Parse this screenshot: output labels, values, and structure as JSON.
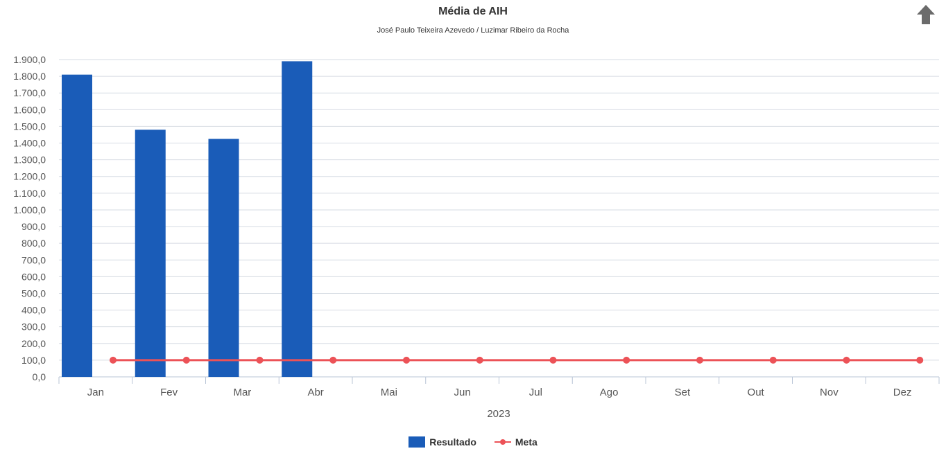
{
  "chart_data": {
    "type": "bar",
    "title": "Média de AIH",
    "subtitle": "José Paulo Teixeira Azevedo / Luzimar Ribeiro da Rocha",
    "xlabel": "2023",
    "ylabel": "",
    "categories": [
      "Jan",
      "Fev",
      "Mar",
      "Abr",
      "Mai",
      "Jun",
      "Jul",
      "Ago",
      "Set",
      "Out",
      "Nov",
      "Dez"
    ],
    "ylim": [
      0,
      1900
    ],
    "ytick_step": 100,
    "yticks": [
      "0,0",
      "100,0",
      "200,0",
      "300,0",
      "400,0",
      "500,0",
      "600,0",
      "700,0",
      "800,0",
      "900,0",
      "1.000,0",
      "1.100,0",
      "1.200,0",
      "1.300,0",
      "1.400,0",
      "1.500,0",
      "1.600,0",
      "1.700,0",
      "1.800,0",
      "1.900,0"
    ],
    "grid": true,
    "legend_position": "bottom-center",
    "series": [
      {
        "name": "Resultado",
        "type": "bar",
        "color": "#1a5cb8",
        "values": [
          1810,
          1480,
          1425,
          1890,
          null,
          null,
          null,
          null,
          null,
          null,
          null,
          null
        ]
      },
      {
        "name": "Meta",
        "type": "line",
        "color": "#ec5257",
        "values": [
          100,
          100,
          100,
          100,
          100,
          100,
          100,
          100,
          100,
          100,
          100,
          100
        ]
      }
    ]
  },
  "toolbar": {
    "export_icon": "up-arrow-icon"
  }
}
